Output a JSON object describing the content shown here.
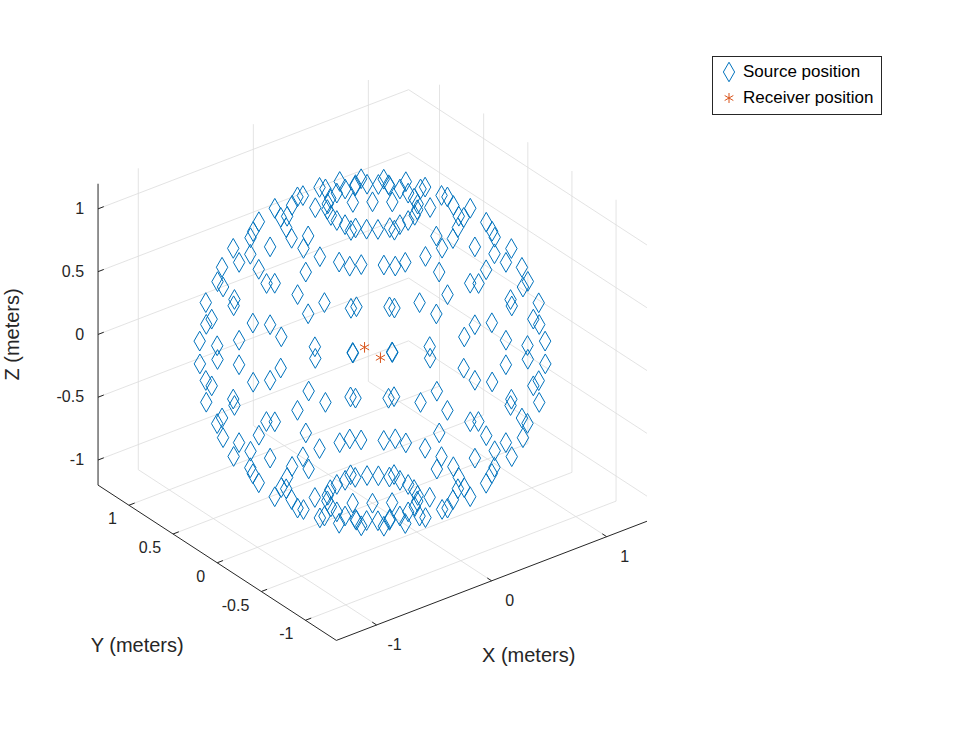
{
  "chart_data": {
    "type": "scatter3d",
    "xlabel": "X (meters)",
    "ylabel": "Y (meters)",
    "zlabel": "Z (meters)",
    "xlim": [
      -1.35,
      1.35
    ],
    "ylim": [
      -1.35,
      1.35
    ],
    "zlim": [
      -1.2,
      1.2
    ],
    "xticks": [
      -1,
      0,
      1
    ],
    "yticks": [
      -1,
      -0.5,
      0,
      0.5,
      1
    ],
    "zticks": [
      -1,
      -0.5,
      0,
      0.5,
      1
    ],
    "grid": true,
    "legend": "northeastoutside",
    "series": [
      {
        "name": "Source position",
        "color": "#0072BD",
        "marker": "diamond",
        "x": [
          0.31,
          0.3,
          0.27,
          0.22,
          0.16,
          0.08,
          0,
          -0.08,
          -0.16,
          -0.22,
          -0.27,
          -0.3,
          -0.31,
          -0.3,
          -0.27,
          -0.22,
          -0.16,
          -0.08,
          0,
          0.08,
          0.16,
          0.22,
          0.27,
          0.3,
          0.6,
          0.58,
          0.52,
          0.42,
          0.3,
          0.16,
          0,
          -0.16,
          -0.3,
          -0.42,
          -0.52,
          -0.58,
          -0.6,
          -0.58,
          -0.52,
          -0.42,
          -0.3,
          -0.16,
          0,
          0.16,
          0.3,
          0.42,
          0.52,
          0.58,
          0.85,
          0.82,
          0.74,
          0.6,
          0.42,
          0.22,
          0,
          -0.22,
          -0.42,
          -0.6,
          -0.74,
          -0.82,
          -0.85,
          -0.82,
          -0.74,
          -0.6,
          -0.42,
          -0.22,
          0,
          0.22,
          0.42,
          0.6,
          0.74,
          0.82,
          1.04,
          1,
          0.9,
          0.74,
          0.52,
          0.27,
          0,
          -0.27,
          -0.52,
          -0.74,
          -0.9,
          -1,
          -1.04,
          -1,
          -0.9,
          -0.74,
          -0.52,
          -0.27,
          0,
          0.27,
          0.52,
          0.74,
          0.9,
          1,
          1.16,
          1.12,
          1,
          0.82,
          0.58,
          0.3,
          0,
          -0.3,
          -0.58,
          -0.82,
          -1,
          -1.12,
          -1.16,
          -1.12,
          -1,
          -0.82,
          -0.58,
          -0.3,
          0,
          0.3,
          0.58,
          0.82,
          1,
          1.12,
          1.2,
          1.16,
          1.04,
          0.85,
          0.6,
          0.31,
          0,
          -0.31,
          -0.6,
          -0.85,
          -1.04,
          -1.16,
          -1.2,
          -1.16,
          -1.04,
          -0.85,
          -0.6,
          -0.31,
          0,
          0.31,
          0.6,
          0.85,
          1.04,
          1.16,
          1.16,
          1.12,
          1,
          0.82,
          0.58,
          0.3,
          0,
          -0.3,
          -0.58,
          -0.82,
          -1,
          -1.12,
          -1.16,
          -1.12,
          -1,
          -0.82,
          -0.58,
          -0.3,
          0,
          0.3,
          0.58,
          0.82,
          1,
          1.12,
          1.04,
          1,
          0.9,
          0.74,
          0.52,
          0.27,
          0,
          -0.27,
          -0.52,
          -0.74,
          -0.9,
          -1,
          -1.04,
          -1,
          -0.9,
          -0.74,
          -0.52,
          -0.27,
          0,
          0.27,
          0.52,
          0.74,
          0.9,
          1,
          0.85,
          0.82,
          0.74,
          0.6,
          0.42,
          0.22,
          0,
          -0.22,
          -0.42,
          -0.6,
          -0.74,
          -0.82,
          -0.85,
          -0.82,
          -0.74,
          -0.6,
          -0.42,
          -0.22,
          0,
          0.22,
          0.42,
          0.6,
          0.74,
          0.82,
          0.6,
          0.58,
          0.52,
          0.42,
          0.3,
          0.16,
          0,
          -0.16,
          -0.3,
          -0.42,
          -0.52,
          -0.58,
          -0.6,
          -0.58,
          -0.52,
          -0.42,
          -0.3,
          -0.16,
          0,
          0.16,
          0.3,
          0.42,
          0.52,
          0.58,
          0.31,
          0.3,
          0.27,
          0.22,
          0.16,
          0.08,
          0,
          -0.08,
          -0.16,
          -0.22,
          -0.27,
          -0.3,
          -0.31,
          -0.3,
          -0.27,
          -0.22,
          -0.16,
          -0.08,
          0,
          0.08,
          0.16,
          0.22,
          0.27,
          0.3,
          0,
          0
        ],
        "y": [
          0,
          0.08,
          0.16,
          0.22,
          0.27,
          0.3,
          0.31,
          0.3,
          0.27,
          0.22,
          0.16,
          0.08,
          0,
          -0.08,
          -0.16,
          -0.22,
          -0.27,
          -0.3,
          -0.31,
          -0.3,
          -0.27,
          -0.22,
          -0.16,
          -0.08,
          0,
          0.16,
          0.3,
          0.42,
          0.52,
          0.58,
          0.6,
          0.58,
          0.52,
          0.42,
          0.3,
          0.16,
          0,
          -0.16,
          -0.3,
          -0.42,
          -0.52,
          -0.58,
          -0.6,
          -0.58,
          -0.52,
          -0.42,
          -0.3,
          -0.16,
          0,
          0.22,
          0.42,
          0.6,
          0.74,
          0.82,
          0.85,
          0.82,
          0.74,
          0.6,
          0.42,
          0.22,
          0,
          -0.22,
          -0.42,
          -0.6,
          -0.74,
          -0.82,
          -0.85,
          -0.82,
          -0.74,
          -0.6,
          -0.42,
          -0.22,
          0,
          0.27,
          0.52,
          0.74,
          0.9,
          1,
          1.04,
          1,
          0.9,
          0.74,
          0.52,
          0.27,
          0,
          -0.27,
          -0.52,
          -0.74,
          -0.9,
          -1,
          -1.04,
          -1,
          -0.9,
          -0.74,
          -0.52,
          -0.27,
          0,
          0.3,
          0.58,
          0.82,
          1,
          1.12,
          1.16,
          1.12,
          1,
          0.82,
          0.58,
          0.3,
          0,
          -0.3,
          -0.58,
          -0.82,
          -1,
          -1.12,
          -1.16,
          -1.12,
          -1,
          -0.82,
          -0.58,
          -0.3,
          0,
          0.31,
          0.6,
          0.85,
          1.04,
          1.16,
          1.2,
          1.16,
          1.04,
          0.85,
          0.6,
          0.31,
          0,
          -0.31,
          -0.6,
          -0.85,
          -1.04,
          -1.16,
          -1.2,
          -1.16,
          -1.04,
          -0.85,
          -0.6,
          -0.31,
          0,
          0.3,
          0.58,
          0.82,
          1,
          1.12,
          1.16,
          1.12,
          1,
          0.82,
          0.58,
          0.3,
          0,
          -0.3,
          -0.58,
          -0.82,
          -1,
          -1.12,
          -1.16,
          -1.12,
          -1,
          -0.82,
          -0.58,
          -0.3,
          0,
          0.27,
          0.52,
          0.74,
          0.9,
          1,
          1.04,
          1,
          0.9,
          0.74,
          0.52,
          0.27,
          0,
          -0.27,
          -0.52,
          -0.74,
          -0.9,
          -1,
          -1.04,
          -1,
          -0.9,
          -0.74,
          -0.52,
          -0.27,
          0,
          0.22,
          0.42,
          0.6,
          0.74,
          0.82,
          0.85,
          0.82,
          0.74,
          0.6,
          0.42,
          0.22,
          0,
          -0.22,
          -0.42,
          -0.6,
          -0.74,
          -0.82,
          -0.85,
          -0.82,
          -0.74,
          -0.6,
          -0.42,
          -0.22,
          0,
          0.16,
          0.3,
          0.42,
          0.52,
          0.58,
          0.6,
          0.58,
          0.52,
          0.42,
          0.3,
          0.16,
          0,
          -0.16,
          -0.3,
          -0.42,
          -0.52,
          -0.58,
          -0.6,
          -0.58,
          -0.52,
          -0.42,
          -0.3,
          -0.16,
          0,
          0.08,
          0.16,
          0.22,
          0.27,
          0.3,
          0.31,
          0.3,
          0.27,
          0.22,
          0.16,
          0.08,
          0,
          -0.08,
          -0.16,
          -0.22,
          -0.27,
          -0.3,
          -0.31,
          -0.3,
          -0.27,
          -0.22,
          -0.16,
          -0.08,
          0,
          0
        ],
        "z": [
          -1.16,
          -1.16,
          -1.16,
          -1.16,
          -1.16,
          -1.16,
          -1.16,
          -1.16,
          -1.16,
          -1.16,
          -1.16,
          -1.16,
          -1.16,
          -1.16,
          -1.16,
          -1.16,
          -1.16,
          -1.16,
          -1.16,
          -1.16,
          -1.16,
          -1.16,
          -1.16,
          -1.16,
          -1.04,
          -1.04,
          -1.04,
          -1.04,
          -1.04,
          -1.04,
          -1.04,
          -1.04,
          -1.04,
          -1.04,
          -1.04,
          -1.04,
          -1.04,
          -1.04,
          -1.04,
          -1.04,
          -1.04,
          -1.04,
          -1.04,
          -1.04,
          -1.04,
          -1.04,
          -1.04,
          -1.04,
          -0.85,
          -0.85,
          -0.85,
          -0.85,
          -0.85,
          -0.85,
          -0.85,
          -0.85,
          -0.85,
          -0.85,
          -0.85,
          -0.85,
          -0.85,
          -0.85,
          -0.85,
          -0.85,
          -0.85,
          -0.85,
          -0.85,
          -0.85,
          -0.85,
          -0.85,
          -0.85,
          -0.85,
          -0.6,
          -0.6,
          -0.6,
          -0.6,
          -0.6,
          -0.6,
          -0.6,
          -0.6,
          -0.6,
          -0.6,
          -0.6,
          -0.6,
          -0.6,
          -0.6,
          -0.6,
          -0.6,
          -0.6,
          -0.6,
          -0.6,
          -0.6,
          -0.6,
          -0.6,
          -0.6,
          -0.6,
          -0.31,
          -0.31,
          -0.31,
          -0.31,
          -0.31,
          -0.31,
          -0.31,
          -0.31,
          -0.31,
          -0.31,
          -0.31,
          -0.31,
          -0.31,
          -0.31,
          -0.31,
          -0.31,
          -0.31,
          -0.31,
          -0.31,
          -0.31,
          -0.31,
          -0.31,
          -0.31,
          -0.31,
          0,
          0,
          0,
          0,
          0,
          0,
          0,
          0,
          0,
          0,
          0,
          0,
          0,
          0,
          0,
          0,
          0,
          0,
          0,
          0,
          0,
          0,
          0,
          0,
          0.31,
          0.31,
          0.31,
          0.31,
          0.31,
          0.31,
          0.31,
          0.31,
          0.31,
          0.31,
          0.31,
          0.31,
          0.31,
          0.31,
          0.31,
          0.31,
          0.31,
          0.31,
          0.31,
          0.31,
          0.31,
          0.31,
          0.31,
          0.31,
          0.6,
          0.6,
          0.6,
          0.6,
          0.6,
          0.6,
          0.6,
          0.6,
          0.6,
          0.6,
          0.6,
          0.6,
          0.6,
          0.6,
          0.6,
          0.6,
          0.6,
          0.6,
          0.6,
          0.6,
          0.6,
          0.6,
          0.6,
          0.6,
          0.85,
          0.85,
          0.85,
          0.85,
          0.85,
          0.85,
          0.85,
          0.85,
          0.85,
          0.85,
          0.85,
          0.85,
          0.85,
          0.85,
          0.85,
          0.85,
          0.85,
          0.85,
          0.85,
          0.85,
          0.85,
          0.85,
          0.85,
          0.85,
          1.04,
          1.04,
          1.04,
          1.04,
          1.04,
          1.04,
          1.04,
          1.04,
          1.04,
          1.04,
          1.04,
          1.04,
          1.04,
          1.04,
          1.04,
          1.04,
          1.04,
          1.04,
          1.04,
          1.04,
          1.04,
          1.04,
          1.04,
          1.04,
          1.16,
          1.16,
          1.16,
          1.16,
          1.16,
          1.16,
          1.16,
          1.16,
          1.16,
          1.16,
          1.16,
          1.16,
          1.16,
          1.16,
          1.16,
          1.16,
          1.16,
          1.16,
          1.16,
          1.16,
          1.16,
          1.16,
          1.16,
          1.16,
          -1.2,
          1.2
        ]
      },
      {
        "name": "Receiver position",
        "color": "#D95319",
        "marker": "asterisk",
        "x": [
          0,
          0
        ],
        "y": [
          0.09,
          -0.09
        ],
        "z": [
          0,
          0
        ]
      }
    ]
  }
}
